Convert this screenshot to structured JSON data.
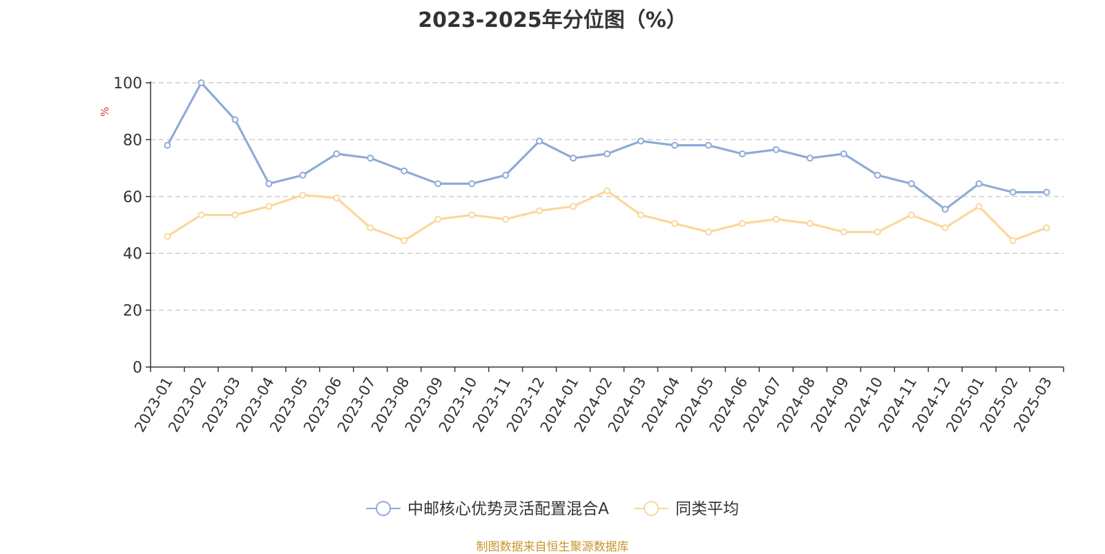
{
  "chart_data": {
    "type": "line",
    "title": "2023-2025年分位图（%）",
    "ylabel": "%",
    "ylim": [
      0,
      100
    ],
    "yticks": [
      0,
      20,
      40,
      60,
      80,
      100
    ],
    "grid": true,
    "legend_position": "bottom-center",
    "categories": [
      "2023-01",
      "2023-02",
      "2023-03",
      "2023-04",
      "2023-05",
      "2023-06",
      "2023-07",
      "2023-08",
      "2023-09",
      "2023-10",
      "2023-11",
      "2023-12",
      "2024-01",
      "2024-02",
      "2024-03",
      "2024-04",
      "2024-05",
      "2024-06",
      "2024-07",
      "2024-08",
      "2024-09",
      "2024-10",
      "2024-11",
      "2024-12",
      "2025-01",
      "2025-02",
      "2025-03"
    ],
    "series": [
      {
        "name": "中邮核心优势灵活配置混合A",
        "color": "#8eaad8",
        "values": [
          78,
          100,
          87,
          64.5,
          67.5,
          75,
          73.5,
          69,
          64.5,
          64.5,
          67.5,
          79.5,
          73.5,
          75,
          79.5,
          78,
          78,
          75,
          76.5,
          73.5,
          75,
          67.5,
          64.5,
          55.5,
          64.5,
          61.5,
          61.5
        ]
      },
      {
        "name": "同类平均",
        "color": "#f9d89a",
        "values": [
          46,
          53.5,
          53.5,
          56.5,
          60.5,
          59.5,
          49,
          44.5,
          52,
          53.5,
          52,
          55,
          56.5,
          62,
          53.5,
          50.5,
          47.5,
          50.5,
          52,
          50.5,
          47.5,
          47.5,
          53.5,
          49,
          56.5,
          44.5,
          49
        ]
      }
    ]
  },
  "source_note": "制图数据来自恒生聚源数据库",
  "colors": {
    "title": "#333333",
    "axis": "#333333",
    "ylabel": "#e03030",
    "grid": "#cccccc",
    "source": "#c8952c"
  }
}
